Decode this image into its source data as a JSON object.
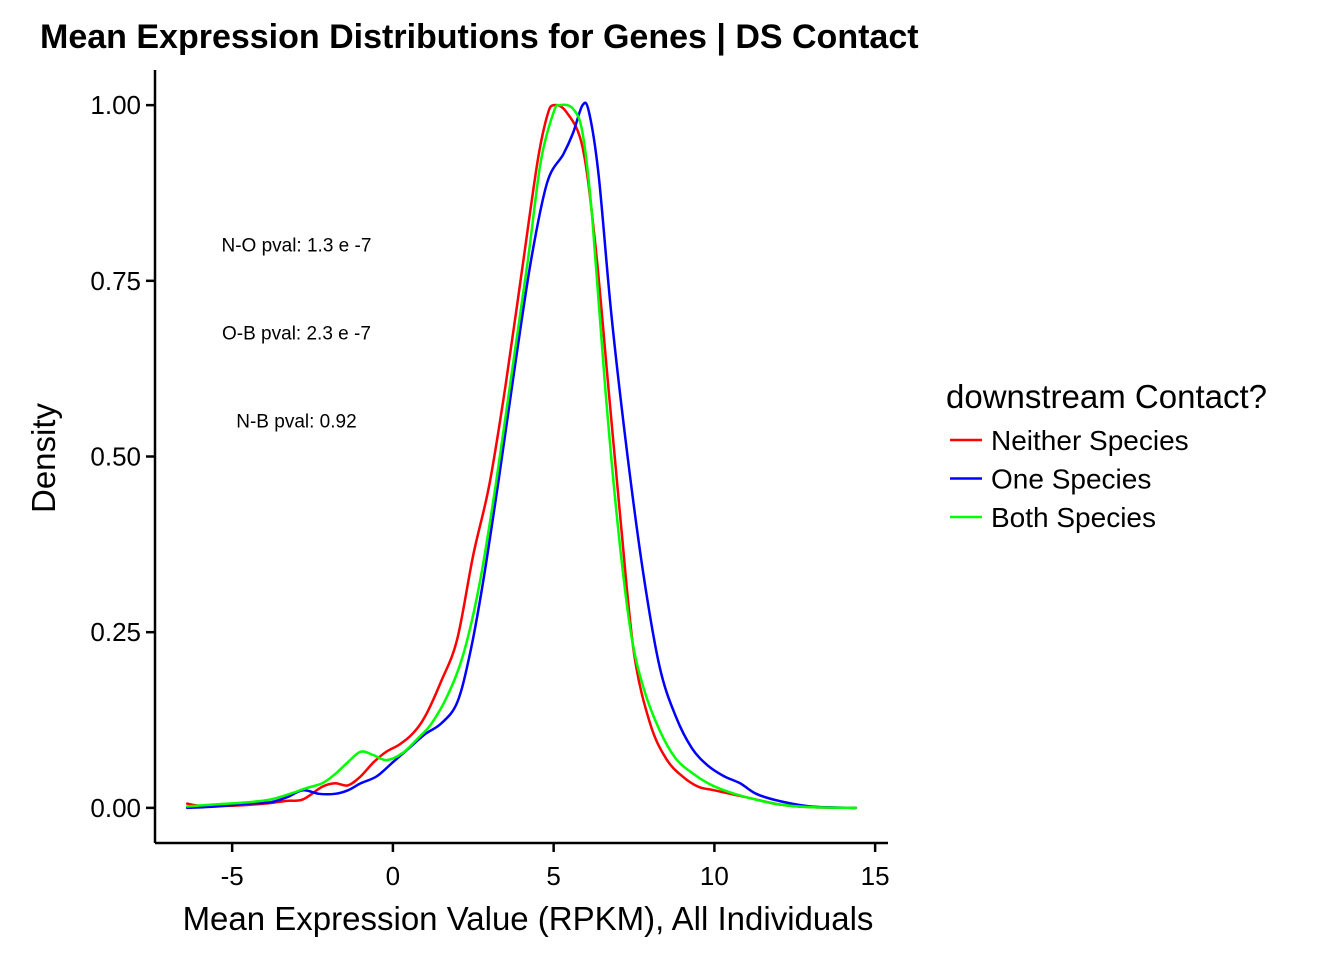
{
  "chart_data": {
    "type": "line",
    "title": "Mean Expression Distributions for Genes | DS Contact",
    "xlabel": "Mean Expression Value (RPKM), All Individuals",
    "ylabel": "Density",
    "xlim": [
      -7.4,
      15.4
    ],
    "ylim": [
      -0.05,
      1.05
    ],
    "x_ticks": [
      -5,
      0,
      5,
      10,
      15
    ],
    "x_tick_labels": [
      "-5",
      "0",
      "5",
      "10",
      "15"
    ],
    "y_ticks": [
      0,
      0.25,
      0.5,
      0.75,
      1.0
    ],
    "y_tick_labels": [
      "0.00",
      "0.25",
      "0.50",
      "0.75",
      "1.00"
    ],
    "grid": false,
    "legend": {
      "title": "downstream Contact?",
      "placement": "right"
    },
    "annotations": [
      {
        "text": "N-O pval: 1.3 e -7",
        "x": -3.0,
        "y": 0.8
      },
      {
        "text": "O-B pval: 2.3 e -7",
        "x": -3.0,
        "y": 0.675
      },
      {
        "text": "N-B pval: 0.92",
        "x": -3.0,
        "y": 0.55
      }
    ],
    "series": [
      {
        "name": "Neither Species",
        "color": "#ff0000",
        "points": [
          [
            -6.4,
            0.006
          ],
          [
            -6.0,
            0.003
          ],
          [
            -5.0,
            0.003
          ],
          [
            -4.0,
            0.006
          ],
          [
            -3.3,
            0.01
          ],
          [
            -2.8,
            0.012
          ],
          [
            -2.2,
            0.03
          ],
          [
            -1.8,
            0.035
          ],
          [
            -1.4,
            0.032
          ],
          [
            -1.0,
            0.045
          ],
          [
            -0.6,
            0.065
          ],
          [
            -0.2,
            0.08
          ],
          [
            0.2,
            0.09
          ],
          [
            0.6,
            0.105
          ],
          [
            1.0,
            0.13
          ],
          [
            1.5,
            0.18
          ],
          [
            2.0,
            0.24
          ],
          [
            2.5,
            0.36
          ],
          [
            3.0,
            0.46
          ],
          [
            3.5,
            0.6
          ],
          [
            4.0,
            0.76
          ],
          [
            4.5,
            0.92
          ],
          [
            4.8,
            0.985
          ],
          [
            5.0,
            1.0
          ],
          [
            5.4,
            0.99
          ],
          [
            5.9,
            0.94
          ],
          [
            6.3,
            0.8
          ],
          [
            6.7,
            0.6
          ],
          [
            7.1,
            0.4
          ],
          [
            7.5,
            0.22
          ],
          [
            8.0,
            0.12
          ],
          [
            8.5,
            0.07
          ],
          [
            9.0,
            0.045
          ],
          [
            9.5,
            0.03
          ],
          [
            10.0,
            0.025
          ],
          [
            11.0,
            0.015
          ],
          [
            12.0,
            0.005
          ],
          [
            13.0,
            0.001
          ],
          [
            14.4,
            0.0
          ]
        ]
      },
      {
        "name": "One Species",
        "color": "#0000ff",
        "points": [
          [
            -6.4,
            0.0
          ],
          [
            -5.5,
            0.002
          ],
          [
            -4.5,
            0.006
          ],
          [
            -3.8,
            0.008
          ],
          [
            -3.3,
            0.015
          ],
          [
            -2.8,
            0.025
          ],
          [
            -2.3,
            0.02
          ],
          [
            -1.8,
            0.02
          ],
          [
            -1.4,
            0.025
          ],
          [
            -1.0,
            0.035
          ],
          [
            -0.5,
            0.045
          ],
          [
            0.0,
            0.065
          ],
          [
            0.5,
            0.085
          ],
          [
            1.0,
            0.105
          ],
          [
            1.5,
            0.12
          ],
          [
            2.0,
            0.15
          ],
          [
            2.4,
            0.22
          ],
          [
            2.8,
            0.32
          ],
          [
            3.3,
            0.47
          ],
          [
            3.8,
            0.63
          ],
          [
            4.3,
            0.78
          ],
          [
            4.8,
            0.89
          ],
          [
            5.3,
            0.93
          ],
          [
            5.6,
            0.96
          ],
          [
            5.9,
            1.0
          ],
          [
            6.1,
            0.99
          ],
          [
            6.4,
            0.9
          ],
          [
            6.8,
            0.7
          ],
          [
            7.3,
            0.5
          ],
          [
            7.8,
            0.33
          ],
          [
            8.3,
            0.2
          ],
          [
            8.8,
            0.13
          ],
          [
            9.3,
            0.085
          ],
          [
            9.8,
            0.06
          ],
          [
            10.3,
            0.045
          ],
          [
            10.8,
            0.035
          ],
          [
            11.3,
            0.02
          ],
          [
            12.0,
            0.01
          ],
          [
            13.0,
            0.002
          ],
          [
            14.4,
            0.0
          ]
        ]
      },
      {
        "name": "Both Species",
        "color": "#00ff00",
        "points": [
          [
            -6.4,
            0.002
          ],
          [
            -5.5,
            0.005
          ],
          [
            -4.5,
            0.008
          ],
          [
            -3.8,
            0.012
          ],
          [
            -3.2,
            0.02
          ],
          [
            -2.7,
            0.028
          ],
          [
            -2.2,
            0.035
          ],
          [
            -1.8,
            0.048
          ],
          [
            -1.4,
            0.065
          ],
          [
            -1.0,
            0.08
          ],
          [
            -0.6,
            0.075
          ],
          [
            -0.2,
            0.068
          ],
          [
            0.3,
            0.078
          ],
          [
            0.8,
            0.1
          ],
          [
            1.2,
            0.12
          ],
          [
            1.7,
            0.16
          ],
          [
            2.2,
            0.22
          ],
          [
            2.7,
            0.32
          ],
          [
            3.2,
            0.46
          ],
          [
            3.7,
            0.62
          ],
          [
            4.2,
            0.78
          ],
          [
            4.6,
            0.92
          ],
          [
            5.0,
            0.99
          ],
          [
            5.2,
            1.0
          ],
          [
            5.6,
            0.995
          ],
          [
            5.9,
            0.96
          ],
          [
            6.2,
            0.84
          ],
          [
            6.6,
            0.6
          ],
          [
            7.0,
            0.4
          ],
          [
            7.4,
            0.25
          ],
          [
            7.8,
            0.17
          ],
          [
            8.3,
            0.11
          ],
          [
            8.8,
            0.07
          ],
          [
            9.3,
            0.05
          ],
          [
            9.8,
            0.035
          ],
          [
            10.3,
            0.025
          ],
          [
            11.0,
            0.015
          ],
          [
            12.0,
            0.005
          ],
          [
            13.0,
            0.001
          ],
          [
            14.4,
            0.0
          ]
        ]
      }
    ]
  }
}
